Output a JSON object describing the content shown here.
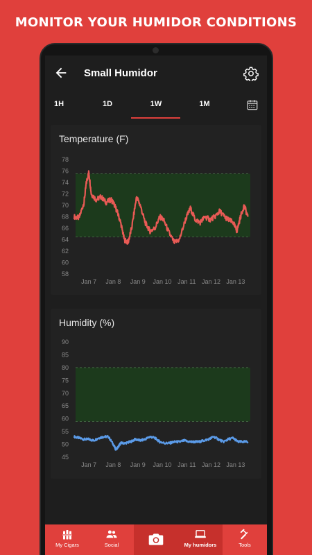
{
  "promo": {
    "headline": "MONITOR YOUR HUMIDOR CONDITIONS"
  },
  "appbar": {
    "title": "Small Humidor",
    "back_icon": "arrow-left-icon",
    "settings_icon": "gear-icon"
  },
  "tabs": {
    "items": [
      "1H",
      "1D",
      "1W",
      "1M"
    ],
    "selected": "1W",
    "calendar_icon": "calendar-icon"
  },
  "charts": {
    "temperature": {
      "title": "Temperature (F)"
    },
    "humidity": {
      "title": "Humidity (%)"
    }
  },
  "chart_data": [
    {
      "type": "line",
      "title": "Temperature (F)",
      "ylim": [
        58,
        78
      ],
      "yticks": [
        58,
        60,
        62,
        64,
        66,
        68,
        70,
        72,
        74,
        76,
        78
      ],
      "xticks": [
        "Jan 7",
        "Jan 8",
        "Jan 9",
        "Jan 10",
        "Jan 11",
        "Jan 12",
        "Jan 13"
      ],
      "xlim": [
        6.4,
        13.6
      ],
      "target_band": [
        64.5,
        75.5
      ],
      "band_color": "#1c3a1c",
      "series": [
        {
          "color": "#e85a55",
          "x": [
            6.4,
            6.6,
            6.8,
            6.9,
            7.0,
            7.1,
            7.3,
            7.5,
            7.7,
            7.9,
            8.0,
            8.15,
            8.3,
            8.45,
            8.6,
            8.75,
            8.95,
            9.1,
            9.3,
            9.5,
            9.7,
            9.9,
            10.05,
            10.3,
            10.5,
            10.7,
            10.95,
            11.15,
            11.35,
            11.55,
            11.75,
            11.95,
            12.15,
            12.35,
            12.55,
            12.7,
            12.9,
            13.05,
            13.2,
            13.35,
            13.5
          ],
          "y": [
            68,
            67.8,
            70.5,
            74,
            75.8,
            72,
            71,
            71.5,
            70.5,
            71,
            70.5,
            69,
            67,
            64,
            63.5,
            66,
            71.5,
            70,
            67,
            65.5,
            66,
            68,
            67.5,
            65,
            63.5,
            64,
            67.5,
            69.5,
            67.5,
            67,
            68,
            67.5,
            68,
            69,
            68,
            67.5,
            67,
            65.5,
            68,
            70,
            68
          ]
        }
      ]
    },
    {
      "type": "line",
      "title": "Humidity (%)",
      "ylim": [
        45,
        90
      ],
      "yticks": [
        45,
        50,
        55,
        60,
        65,
        70,
        75,
        80,
        85,
        90
      ],
      "xticks": [
        "Jan 7",
        "Jan 8",
        "Jan 9",
        "Jan 10",
        "Jan 11",
        "Jan 12",
        "Jan 13"
      ],
      "xlim": [
        6.4,
        13.6
      ],
      "target_band": [
        59,
        80
      ],
      "band_color": "#1c3a1c",
      "series": [
        {
          "color": "#5b9be8",
          "x": [
            6.4,
            6.6,
            6.8,
            7.0,
            7.2,
            7.4,
            7.6,
            7.8,
            8.0,
            8.1,
            8.2,
            8.3,
            8.5,
            8.7,
            8.9,
            9.1,
            9.3,
            9.5,
            9.7,
            9.9,
            10.1,
            10.3,
            10.5,
            10.7,
            10.9,
            11.1,
            11.3,
            11.5,
            11.7,
            11.9,
            12.1,
            12.3,
            12.5,
            12.7,
            12.9,
            13.1,
            13.3,
            13.5
          ],
          "y": [
            53,
            52.5,
            52,
            52,
            51.5,
            52.5,
            53,
            53,
            50,
            48,
            49,
            50.5,
            50.5,
            51,
            52,
            51.5,
            52,
            53,
            52.5,
            51,
            50.5,
            50.5,
            51,
            51,
            51.5,
            51,
            51,
            51,
            51.5,
            52,
            53,
            52,
            51,
            52,
            52.5,
            51,
            51,
            51
          ]
        }
      ]
    }
  ],
  "navbar": {
    "items": [
      {
        "label": "My Cigars",
        "icon": "cigars-icon"
      },
      {
        "label": "Social",
        "icon": "people-icon"
      },
      {
        "label": "",
        "icon": "camera-icon"
      },
      {
        "label": "My humidors",
        "icon": "humidor-icon"
      },
      {
        "label": "Tools",
        "icon": "hammer-icon"
      }
    ],
    "active": "My humidors"
  }
}
